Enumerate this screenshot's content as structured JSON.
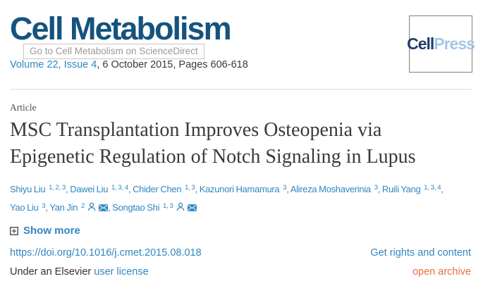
{
  "header": {
    "journal_logo": "Cell Metabolism",
    "logo_tooltip": "Go to Cell Metabolism on ScienceDirect",
    "volume_link": "Volume 22, Issue 4",
    "volume_rest": ", 6 October 2015, Pages 606-618",
    "publisher_logo": {
      "part1": "Cell",
      "part2": "Press"
    }
  },
  "article": {
    "type_label": "Article",
    "title": "MSC Transplantation Improves Osteopenia via Epigenetic Regulation of Notch Signaling in Lupus",
    "authors": [
      {
        "name": "Shiyu Liu",
        "sup": "1, 2, 3",
        "icons": []
      },
      {
        "name": "Dawei Liu",
        "sup": "1, 3, 4",
        "icons": []
      },
      {
        "name": "Chider Chen",
        "sup": "1, 3",
        "icons": []
      },
      {
        "name": "Kazunori Hamamura",
        "sup": "3",
        "icons": []
      },
      {
        "name": "Alireza Moshaverinia",
        "sup": "3",
        "icons": []
      },
      {
        "name": "Ruili Yang",
        "sup": "1, 3, 4",
        "icons": [],
        "break_after": true
      },
      {
        "name": "Yao Liu",
        "sup": "3",
        "icons": []
      },
      {
        "name": "Yan Jin",
        "sup": "2",
        "icons": [
          "person",
          "envelope"
        ]
      },
      {
        "name": "Songtao Shi",
        "sup": "1, 3",
        "icons": [
          "person",
          "envelope"
        ]
      }
    ],
    "show_more_label": "Show more"
  },
  "links": {
    "doi": "https://doi.org/10.1016/j.cmet.2015.08.018",
    "rights_label": "Get rights and content",
    "license_prefix": "Under an Elsevier ",
    "license_link_label": "user license",
    "open_archive_label": "open archive"
  },
  "colors": {
    "link_blue": "#3187c3",
    "journal_logo_navy": "#15537e",
    "open_archive_orange": "#e8703d",
    "cellpress_navy": "#1d3e6b",
    "cellpress_light_blue": "#a6c7e7"
  }
}
